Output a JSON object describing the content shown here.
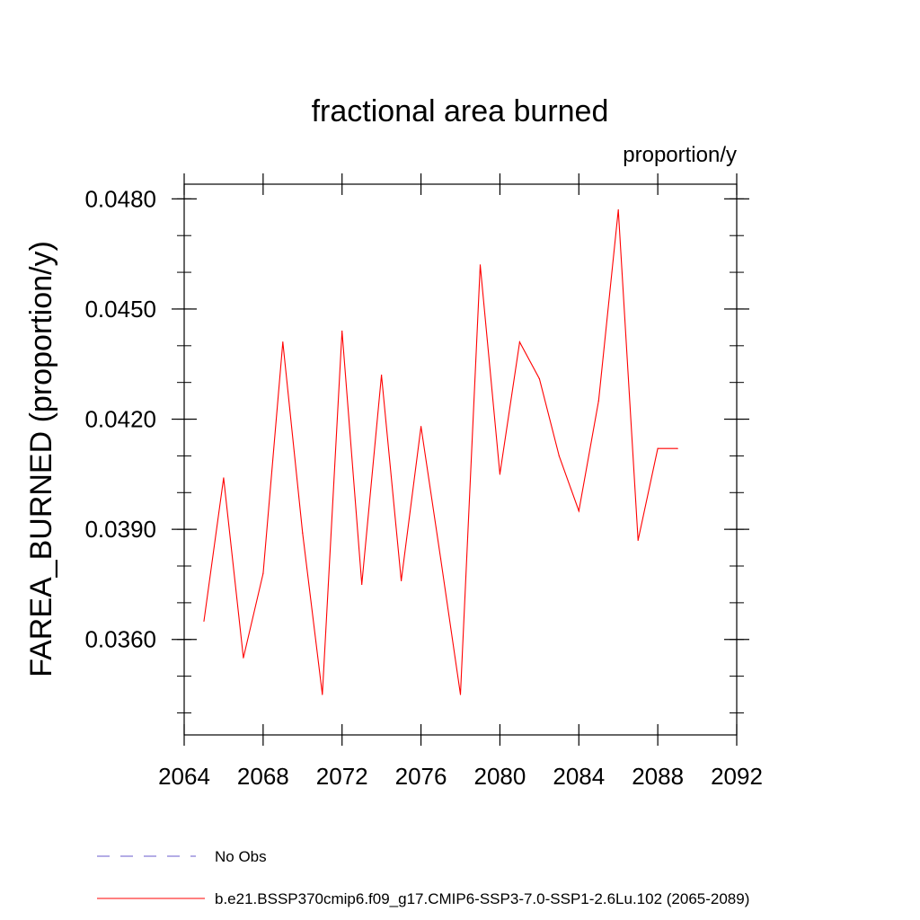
{
  "chart_data": {
    "type": "line",
    "title": "fractional area burned",
    "units_label": "proportion/y",
    "xlabel": "",
    "ylabel": "FAREA_BURNED  (proportion/y)",
    "xlim": [
      2064,
      2092
    ],
    "ylim": [
      0.0334,
      0.0484
    ],
    "x_ticks": [
      2064,
      2068,
      2072,
      2076,
      2080,
      2084,
      2088,
      2092
    ],
    "x_tick_labels": [
      "2064",
      "2068",
      "2072",
      "2076",
      "2080",
      "2084",
      "2088",
      "2092"
    ],
    "y_ticks": [
      0.036,
      0.039,
      0.042,
      0.045,
      0.048
    ],
    "y_tick_labels": [
      "0.0360",
      "0.0390",
      "0.0420",
      "0.0450",
      "0.0480"
    ],
    "grid": false,
    "legend_position": "bottom",
    "series": [
      {
        "name": "b.e21.BSSP370cmip6.f09_g17.CMIP6-SSP3-7.0-SSP1-2.6Lu.102 (2065-2089)",
        "color": "#ff0000",
        "dash": "solid",
        "x": [
          2065,
          2066,
          2067,
          2068,
          2069,
          2070,
          2071,
          2072,
          2073,
          2074,
          2075,
          2076,
          2077,
          2078,
          2079,
          2080,
          2081,
          2082,
          2083,
          2084,
          2085,
          2086,
          2087,
          2088,
          2089
        ],
        "values": [
          0.0365,
          0.0404,
          0.0355,
          0.0378,
          0.0441,
          0.0389,
          0.0345,
          0.0444,
          0.0375,
          0.0432,
          0.0376,
          0.0418,
          0.0382,
          0.0345,
          0.0462,
          0.0405,
          0.0441,
          0.0431,
          0.041,
          0.0395,
          0.0425,
          0.0477,
          0.0387,
          0.0412,
          0.0412
        ]
      }
    ],
    "legend": [
      {
        "label": "No Obs",
        "color": "#6a5acd",
        "dash": "dashed"
      },
      {
        "label": "b.e21.BSSP370cmip6.f09_g17.CMIP6-SSP3-7.0-SSP1-2.6Lu.102 (2065-2089)",
        "color": "#ff0000",
        "dash": "solid"
      }
    ]
  }
}
